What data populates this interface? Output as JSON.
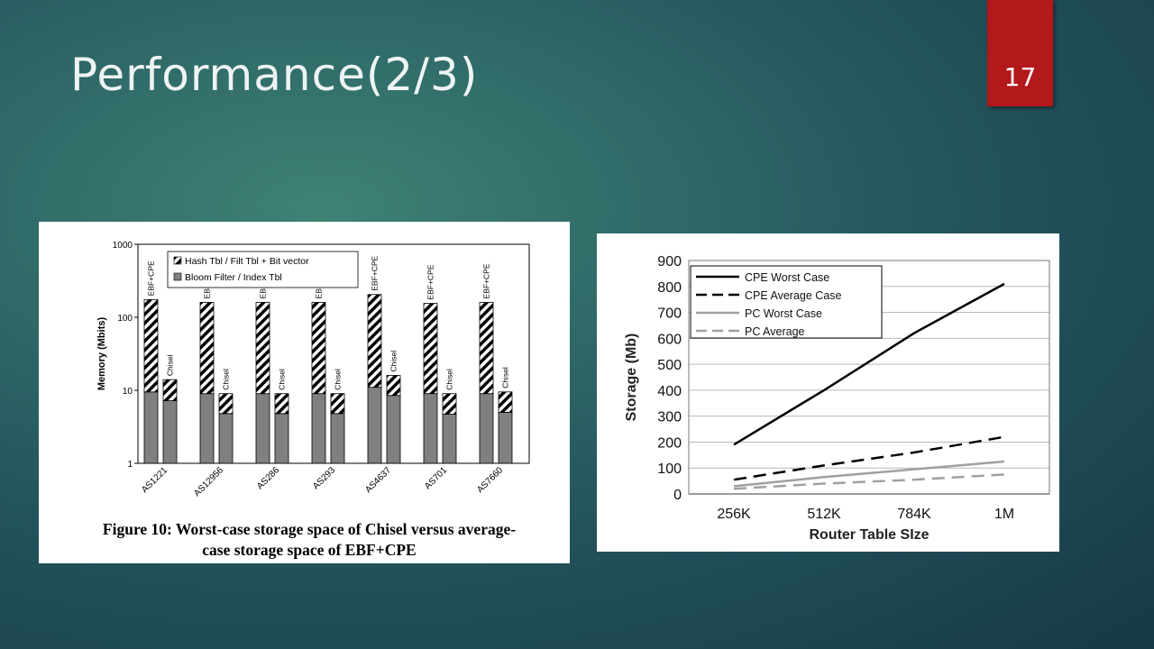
{
  "slide": {
    "title": "Performance(2/3)",
    "page_number": "17",
    "colors": {
      "background": "#2a5f63",
      "badge": "#b3191b",
      "title": "#eef3f3"
    }
  },
  "chart_data": [
    {
      "type": "bar",
      "stacked": true,
      "log_scale_y": true,
      "ylabel": "Memory (Mbits)",
      "ylim": [
        1,
        1000
      ],
      "yticks": [
        "1000",
        "100",
        "10",
        "1"
      ],
      "categories": [
        "AS1221",
        "AS12956",
        "AS286",
        "AS293",
        "AS4637",
        "AS701",
        "AS7660"
      ],
      "bar_labels": {
        "left": "EBF+CPE",
        "right": "Chisel"
      },
      "legend": [
        "Hash Tbl / Filt Tbl + Bit vector",
        "Bloom Filter / Index Tbl"
      ],
      "legend_position": "top",
      "series": [
        {
          "name": "EBF+CPE",
          "totals": [
            175,
            160,
            160,
            160,
            205,
            155,
            160
          ],
          "bloom": [
            9.5,
            9,
            9,
            9,
            11,
            9,
            9
          ]
        },
        {
          "name": "Chisel",
          "totals": [
            14,
            9,
            9,
            9,
            16,
            9,
            9.5
          ],
          "bloom": [
            7.2,
            4.8,
            4.8,
            4.8,
            8.5,
            4.7,
            5
          ]
        }
      ],
      "caption": [
        "Figure 10: Worst-case storage space of Chisel versus average-",
        "case storage space of EBF+CPE"
      ]
    },
    {
      "type": "line",
      "xlabel": "Router Table SIze",
      "ylabel": "Storage (Mb)",
      "categories": [
        "256K",
        "512K",
        "784K",
        "1M"
      ],
      "ylim": [
        0,
        900
      ],
      "yticks": [
        0,
        100,
        200,
        300,
        400,
        500,
        600,
        700,
        800,
        900
      ],
      "grid": true,
      "legend_position": "top-left",
      "series": [
        {
          "name": "CPE Worst Case",
          "values": [
            190,
            400,
            620,
            810
          ],
          "color": "#000000",
          "dash": "solid"
        },
        {
          "name": "CPE Average Case",
          "values": [
            55,
            110,
            160,
            220
          ],
          "color": "#000000",
          "dash": "dashed"
        },
        {
          "name": "PC Worst Case",
          "values": [
            30,
            65,
            95,
            125
          ],
          "color": "#a0a0a0",
          "dash": "solid"
        },
        {
          "name": "PC Average",
          "values": [
            20,
            40,
            55,
            75
          ],
          "color": "#a0a0a0",
          "dash": "dashed"
        }
      ]
    }
  ]
}
